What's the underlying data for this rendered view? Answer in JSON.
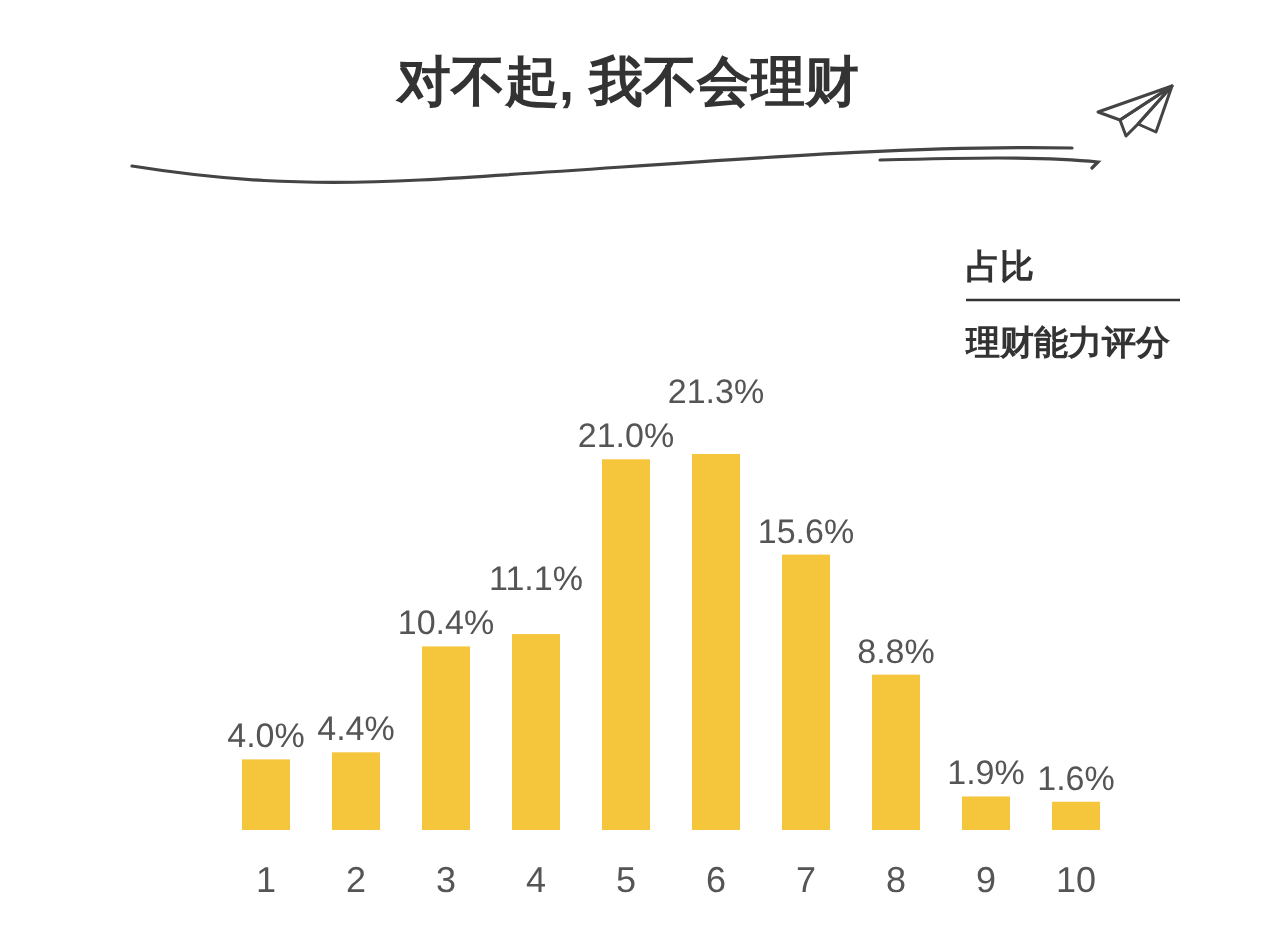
{
  "chart_data": {
    "type": "bar",
    "title": "对不起, 我不会理财",
    "ylabel": "占比",
    "xlabel": "理财能力评分",
    "categories": [
      "1",
      "2",
      "3",
      "4",
      "5",
      "6",
      "7",
      "8",
      "9",
      "10"
    ],
    "values": [
      4.0,
      4.4,
      10.4,
      11.1,
      21.0,
      21.3,
      15.6,
      8.8,
      1.9,
      1.6
    ],
    "value_labels": [
      "4.0%",
      "4.4%",
      "10.4%",
      "11.1%",
      "21.0%",
      "21.3%",
      "15.6%",
      "8.8%",
      "1.9%",
      "1.6%"
    ],
    "color": "#f5c53b"
  }
}
